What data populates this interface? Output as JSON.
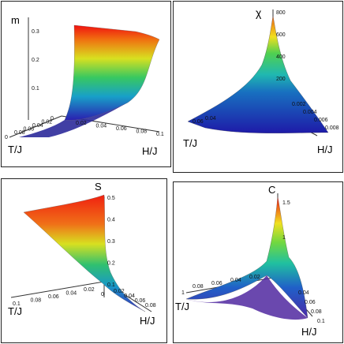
{
  "charts": [
    {
      "id": "m",
      "type": "surface3d",
      "zlabel": "m",
      "xlabel": "T/J",
      "ylabel": "H/J",
      "z_ticks": [
        "0.3",
        "0.2",
        "0.1"
      ],
      "t_ticks": [
        "0.08",
        "0.06",
        "0.04",
        "0.02",
        "0"
      ],
      "h_ticks": [
        "0.02",
        "0.04",
        "0.06",
        "0.08",
        "0.1"
      ],
      "corner_tick": "0"
    },
    {
      "id": "chi",
      "type": "surface3d",
      "zlabel": "χ",
      "xlabel": "T/J",
      "ylabel": "H/J",
      "z_ticks": [
        "800",
        "600",
        "400",
        "200"
      ],
      "t_ticks": [
        "0.06",
        "0.04"
      ],
      "h_ticks": [
        "0.002",
        "0.004",
        "0.006",
        "0.008"
      ],
      "corner_tick": ""
    },
    {
      "id": "s",
      "type": "surface3d",
      "zlabel": "S",
      "xlabel": "T/J",
      "ylabel": "H/J",
      "z_ticks": [
        "0.5",
        "0.4",
        "0.3",
        "0.2",
        "0.1"
      ],
      "t_ticks": [
        "0.1",
        "0.08",
        "0.06",
        "0.04",
        "0.02"
      ],
      "h_ticks": [
        "0.02",
        "0.04",
        "0.06",
        "0.08"
      ],
      "corner_tick": "0"
    },
    {
      "id": "c",
      "type": "surface3d",
      "zlabel": "C",
      "xlabel": "T/J",
      "ylabel": "H/J",
      "z_ticks": [
        "1.5",
        "1"
      ],
      "t_ticks": [
        "0.08",
        "0.06",
        "0.04",
        "0.02"
      ],
      "h_ticks": [
        "0.04",
        "0.06",
        "0.08",
        "0.1"
      ],
      "corner_tick": "1"
    }
  ]
}
